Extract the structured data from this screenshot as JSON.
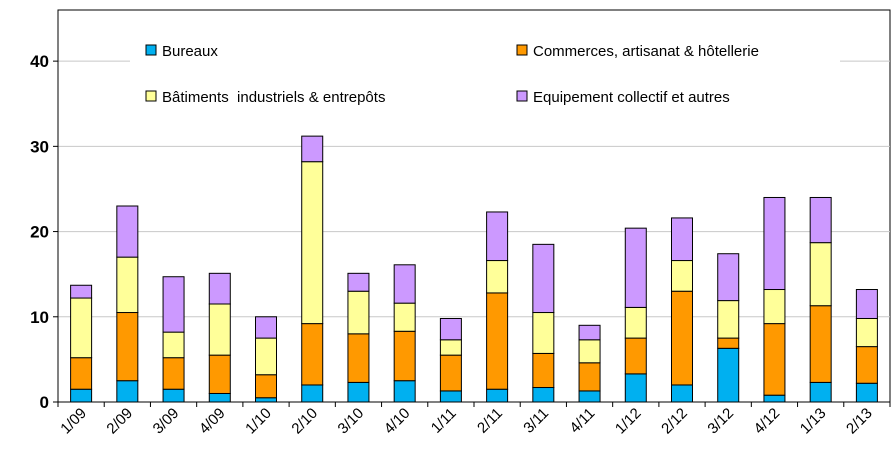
{
  "chart_data": {
    "type": "bar",
    "stacked": true,
    "categories": [
      "1/09",
      "2/09",
      "3/09",
      "4/09",
      "1/10",
      "2/10",
      "3/10",
      "4/10",
      "1/11",
      "2/11",
      "3/11",
      "4/11",
      "1/12",
      "2/12",
      "3/12",
      "4/12",
      "1/13",
      "2/13"
    ],
    "series": [
      {
        "name": "Bureaux",
        "color": "#00b0f0",
        "values": [
          1.5,
          2.5,
          1.5,
          1.0,
          0.5,
          2.0,
          2.3,
          2.5,
          1.3,
          1.5,
          1.7,
          1.3,
          3.3,
          2.0,
          6.3,
          0.8,
          2.3,
          2.2
        ]
      },
      {
        "name": "Commerces, artisanat & hôtellerie",
        "color": "#ff9900",
        "values": [
          3.7,
          8.0,
          3.7,
          4.5,
          2.7,
          7.2,
          5.7,
          5.8,
          4.2,
          11.3,
          4.0,
          3.3,
          4.2,
          11.0,
          1.2,
          8.4,
          9.0,
          4.3
        ]
      },
      {
        "name": "Bâtiments  industriels & entrepôts",
        "color": "#ffff99",
        "values": [
          7.0,
          6.5,
          3.0,
          6.0,
          4.3,
          19.0,
          5.0,
          3.3,
          1.8,
          3.8,
          4.8,
          2.7,
          3.6,
          3.6,
          4.4,
          4.0,
          7.4,
          3.3
        ]
      },
      {
        "name": "Equipement collectif et autres",
        "color": "#cc99ff",
        "values": [
          1.5,
          6.0,
          6.5,
          3.6,
          2.5,
          3.0,
          2.1,
          4.5,
          2.5,
          5.7,
          8.0,
          1.7,
          9.3,
          5.0,
          5.5,
          10.8,
          5.3,
          3.4
        ]
      }
    ],
    "y_ticks": [
      "0",
      "10",
      "20",
      "30",
      "40"
    ],
    "ylim": [
      0,
      46
    ],
    "grid": true,
    "legend": "top, inside plot, 2 columns"
  }
}
